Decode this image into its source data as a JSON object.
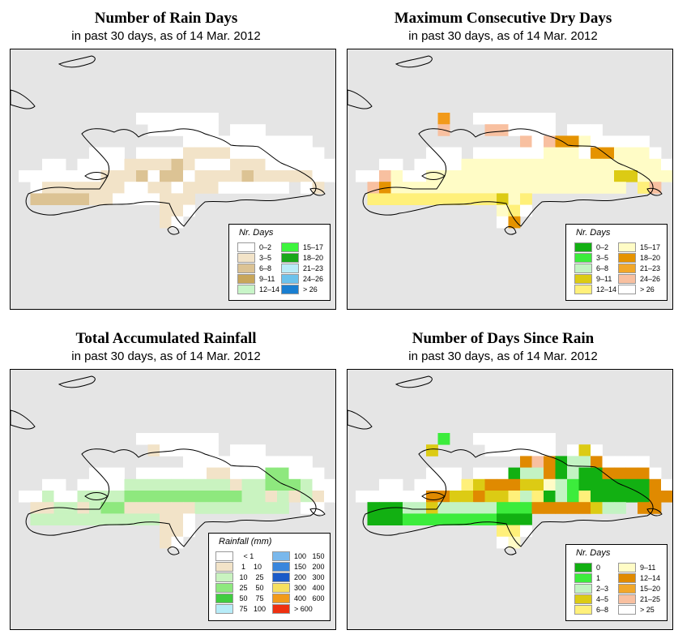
{
  "panels": [
    {
      "title": "Number of Rain Days",
      "subtitle": "in past 30 days, as of  14 Mar. 2012",
      "legend_title": "Nr. Days",
      "legend": [
        {
          "label": "0–2",
          "color": "#ffffff"
        },
        {
          "label": "3–5",
          "color": "#f2e3c8"
        },
        {
          "label": "6–8",
          "color": "#dcc394"
        },
        {
          "label": "9–11",
          "color": "#c8a65a"
        },
        {
          "label": "12–14",
          "color": "#c8f5c8"
        },
        {
          "label": "15–17",
          "color": "#3df53d"
        },
        {
          "label": "18–20",
          "color": "#1aa81a"
        },
        {
          "label": "21–23",
          "color": "#b9ecf8"
        },
        {
          "label": "24–26",
          "color": "#6cc2ec"
        },
        {
          "label": "> 26",
          "color": "#1a7fd1"
        }
      ]
    },
    {
      "title": "Maximum Consecutive Dry Days",
      "subtitle": "in past 30 days, as of  14 Mar. 2012",
      "legend_title": "Nr. Days",
      "legend": [
        {
          "label": "0–2",
          "color": "#13b013"
        },
        {
          "label": "3–5",
          "color": "#3cec3c"
        },
        {
          "label": "6–8",
          "color": "#c3f3c3"
        },
        {
          "label": "9–11",
          "color": "#dccb14"
        },
        {
          "label": "12–14",
          "color": "#fff07a"
        },
        {
          "label": "15–17",
          "color": "#fffcc6"
        },
        {
          "label": "18–20",
          "color": "#e59300"
        },
        {
          "label": "21–23",
          "color": "#f1a72a"
        },
        {
          "label": "24–26",
          "color": "#f8c0a0"
        },
        {
          "label": "> 26",
          "color": "#ffffff"
        }
      ]
    },
    {
      "title": "Total Accumulated Rainfall",
      "subtitle": "in past 30 days, as of  14 Mar. 2012",
      "legend_title": "Rainfall (mm)",
      "legend": [
        {
          "label": "   < 1",
          "color": "#ffffff"
        },
        {
          "label": "  1    10",
          "color": "#f2e3c8"
        },
        {
          "label": " 10    25",
          "color": "#c9f3c0"
        },
        {
          "label": " 25    50",
          "color": "#8ee87e"
        },
        {
          "label": " 50    75",
          "color": "#40cc40"
        },
        {
          "label": " 75   100",
          "color": "#b7ecf8"
        },
        {
          "label": "100   150",
          "color": "#7ab8ec"
        },
        {
          "label": "150   200",
          "color": "#3a86dc"
        },
        {
          "label": "200   300",
          "color": "#1a5ac8"
        },
        {
          "label": "300   400",
          "color": "#f7e060"
        },
        {
          "label": "400   600",
          "color": "#f29a1a"
        },
        {
          "label": "> 600",
          "color": "#ee3010"
        }
      ]
    },
    {
      "title": "Number of Days Since Rain",
      "subtitle": "in past 30 days, as of  14 Mar. 2012",
      "legend_title": "Nr. Days",
      "legend": [
        {
          "label": "0",
          "color": "#12b012"
        },
        {
          "label": "1",
          "color": "#3cec3c"
        },
        {
          "label": "2–3",
          "color": "#c3f3c3"
        },
        {
          "label": "4–5",
          "color": "#dccb14"
        },
        {
          "label": "6–8",
          "color": "#fff07a"
        },
        {
          "label": "9–11",
          "color": "#fffcc6"
        },
        {
          "label": "12–14",
          "color": "#e08a00"
        },
        {
          "label": "15–20",
          "color": "#f1a72a"
        },
        {
          "label": "21–25",
          "color": "#f8c0a0"
        },
        {
          "label": "> 25",
          "color": "#ffffff"
        }
      ]
    }
  ]
}
